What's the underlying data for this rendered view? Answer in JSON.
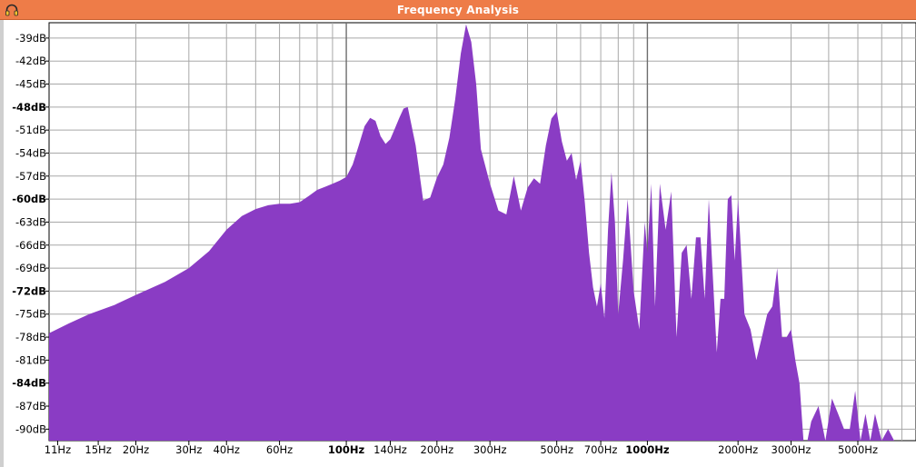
{
  "window": {
    "title": "Frequency Analysis",
    "icon": "headphones-icon",
    "accent_color": "#ee7c48"
  },
  "chart_data": {
    "type": "area",
    "title": "",
    "xlabel": "",
    "ylabel": "",
    "x_scale": "log",
    "xlim": [
      10.3,
      7800
    ],
    "ylim": [
      -91.5,
      -37
    ],
    "fill_color": "#8a3cc4",
    "grid": true,
    "y_ticks": [
      {
        "value": -39,
        "label": "-39dB",
        "bold": false
      },
      {
        "value": -42,
        "label": "-42dB",
        "bold": false
      },
      {
        "value": -45,
        "label": "-45dB",
        "bold": false
      },
      {
        "value": -48,
        "label": "-48dB",
        "bold": true
      },
      {
        "value": -51,
        "label": "-51dB",
        "bold": false
      },
      {
        "value": -54,
        "label": "-54dB",
        "bold": false
      },
      {
        "value": -57,
        "label": "-57dB",
        "bold": false
      },
      {
        "value": -60,
        "label": "-60dB",
        "bold": true
      },
      {
        "value": -63,
        "label": "-63dB",
        "bold": false
      },
      {
        "value": -66,
        "label": "-66dB",
        "bold": false
      },
      {
        "value": -69,
        "label": "-69dB",
        "bold": false
      },
      {
        "value": -72,
        "label": "-72dB",
        "bold": true
      },
      {
        "value": -75,
        "label": "-75dB",
        "bold": false
      },
      {
        "value": -78,
        "label": "-78dB",
        "bold": false
      },
      {
        "value": -81,
        "label": "-81dB",
        "bold": false
      },
      {
        "value": -84,
        "label": "-84dB",
        "bold": true
      },
      {
        "value": -87,
        "label": "-87dB",
        "bold": false
      },
      {
        "value": -90,
        "label": "-90dB",
        "bold": false
      }
    ],
    "x_ticks": [
      {
        "value": 11,
        "label": "11Hz",
        "bold": false
      },
      {
        "value": 15,
        "label": "15Hz",
        "bold": false
      },
      {
        "value": 20,
        "label": "20Hz",
        "bold": false
      },
      {
        "value": 30,
        "label": "30Hz",
        "bold": false
      },
      {
        "value": 40,
        "label": "40Hz",
        "bold": false
      },
      {
        "value": 60,
        "label": "60Hz",
        "bold": false
      },
      {
        "value": 100,
        "label": "100Hz",
        "bold": true
      },
      {
        "value": 140,
        "label": "140Hz",
        "bold": false
      },
      {
        "value": 200,
        "label": "200Hz",
        "bold": false
      },
      {
        "value": 300,
        "label": "300Hz",
        "bold": false
      },
      {
        "value": 500,
        "label": "500Hz",
        "bold": false
      },
      {
        "value": 700,
        "label": "700Hz",
        "bold": false
      },
      {
        "value": 1000,
        "label": "1000Hz",
        "bold": true
      },
      {
        "value": 2000,
        "label": "2000Hz",
        "bold": false
      },
      {
        "value": 3000,
        "label": "3000Hz",
        "bold": false
      },
      {
        "value": 5000,
        "label": "5000Hz",
        "bold": false
      }
    ],
    "grid_x": [
      20,
      30,
      40,
      50,
      60,
      70,
      80,
      90,
      100,
      200,
      300,
      400,
      500,
      600,
      700,
      800,
      900,
      1000,
      2000,
      3000,
      4000,
      5000,
      6000,
      7000
    ],
    "x": [
      10.3,
      12,
      14,
      17,
      20,
      25,
      30,
      35,
      40,
      45,
      50,
      55,
      60,
      65,
      70,
      75,
      80,
      85,
      90,
      95,
      100,
      105,
      110,
      115,
      120,
      125,
      130,
      135,
      140,
      145,
      150,
      155,
      160,
      170,
      180,
      190,
      200,
      210,
      220,
      230,
      240,
      250,
      260,
      270,
      280,
      300,
      320,
      340,
      360,
      380,
      400,
      420,
      440,
      460,
      480,
      500,
      520,
      540,
      560,
      580,
      600,
      620,
      640,
      660,
      680,
      700,
      720,
      740,
      760,
      780,
      800,
      830,
      860,
      900,
      940,
      980,
      1000,
      1030,
      1060,
      1100,
      1150,
      1200,
      1250,
      1300,
      1350,
      1400,
      1450,
      1500,
      1550,
      1600,
      1700,
      1750,
      1800,
      1850,
      1900,
      1950,
      2000,
      2100,
      2200,
      2300,
      2400,
      2500,
      2600,
      2700,
      2800,
      2900,
      3000,
      3100,
      3200,
      3300,
      3400,
      3500,
      3700,
      3900,
      4100,
      4300,
      4500,
      4700,
      4900,
      5100,
      5300,
      5500,
      5700,
      6000,
      6300,
      6600,
      7000,
      7400,
      7800
    ],
    "y": [
      -77.5,
      -76.2,
      -75,
      -73.8,
      -72.5,
      -70.8,
      -69,
      -66.8,
      -64,
      -62.2,
      -61.3,
      -60.8,
      -60.6,
      -60.6,
      -60.4,
      -59.6,
      -58.8,
      -58.4,
      -58.0,
      -57.6,
      -57.1,
      -55.5,
      -53,
      -50.5,
      -49.4,
      -49.8,
      -51.8,
      -52.8,
      -52.2,
      -50.8,
      -49.4,
      -48.2,
      -48,
      -53,
      -60.2,
      -59.8,
      -57.2,
      -55.5,
      -52,
      -47,
      -41,
      -37.2,
      -39.5,
      -45,
      -53.5,
      -58,
      -61.5,
      -62,
      -57,
      -61.5,
      -58.5,
      -57.3,
      -58,
      -53,
      -49.5,
      -48.6,
      -52.5,
      -55,
      -54,
      -57.5,
      -55,
      -60.5,
      -67,
      -71.5,
      -74,
      -71,
      -75.5,
      -64,
      -56.5,
      -63,
      -75,
      -68,
      -60,
      -72,
      -77,
      -63,
      -67,
      -58,
      -74,
      -58,
      -64,
      -59,
      -78,
      -67,
      -66,
      -73,
      -65,
      -65,
      -73,
      -60,
      -80,
      -73,
      -73,
      -60,
      -59.5,
      -68,
      -60,
      -75,
      -77,
      -81,
      -78,
      -75,
      -74,
      -69,
      -78,
      -78,
      -77,
      -81,
      -84,
      -91.5,
      -91.5,
      -89,
      -87,
      -91.5,
      -86,
      -88,
      -90,
      -90,
      -85,
      -91.5,
      -88,
      -91.5,
      -88,
      -91.5,
      -90,
      -91.5,
      -91.5,
      -91.5,
      -91.5
    ]
  }
}
